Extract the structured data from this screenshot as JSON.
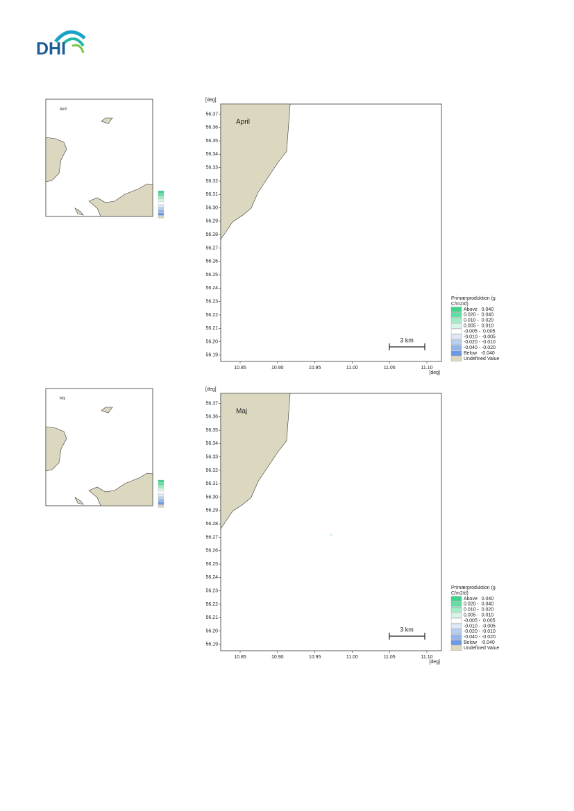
{
  "header": {
    "logo": "DHI"
  },
  "panels": [
    {
      "label": "April",
      "y_unit": "[deg]",
      "x_unit": "[deg]",
      "yticks": [
        "56.37",
        "56.36",
        "56.35",
        "56.34",
        "56.33",
        "56.32",
        "56.31",
        "56.30",
        "56.29",
        "56.28",
        "56.27",
        "56.26",
        "56.25",
        "56.24",
        "56.23",
        "56.22",
        "56.21",
        "56.20",
        "56.19"
      ],
      "xticks": [
        "10.85",
        "10.90",
        "10.95",
        "11.00",
        "11.05",
        "11.10"
      ],
      "scale_bar": "3 km",
      "legend": {
        "title": "Primærproduktion (g C/m2/d)",
        "items": [
          {
            "label": "Above   0.040",
            "color": "#3fd48c"
          },
          {
            "label": "0.020 -  0.040",
            "color": "#62dea2"
          },
          {
            "label": "0.010 -  0.020",
            "color": "#a2ecc8"
          },
          {
            "label": "0.005 -  0.010",
            "color": "#d8f6e8"
          },
          {
            "label": "-0.005 -  0.005",
            "color": "#ffffff"
          },
          {
            "label": "-0.010 - -0.005",
            "color": "#dde8f8"
          },
          {
            "label": "-0.020 - -0.010",
            "color": "#b8d0f0"
          },
          {
            "label": "-0.040 - -0.020",
            "color": "#92b6ec"
          },
          {
            "label": "Below   -0.040",
            "color": "#6a9ae4"
          },
          {
            "label": "Undefined Value",
            "color": "#dcd8c0"
          }
        ]
      }
    },
    {
      "label": "Maj",
      "y_unit": "[deg]",
      "x_unit": "[deg]",
      "yticks": [
        "56.37",
        "56.36",
        "56.35",
        "56.34",
        "56.33",
        "56.32",
        "56.31",
        "56.30",
        "56.29",
        "56.28",
        "56.27",
        "56.26",
        "56.25",
        "56.24",
        "56.23",
        "56.22",
        "56.21",
        "56.20",
        "56.19"
      ],
      "xticks": [
        "10.85",
        "10.90",
        "10.95",
        "11.00",
        "11.05",
        "11.10"
      ],
      "scale_bar": "3 km",
      "legend": {
        "title": "Primærproduktion (g C/m2/d)",
        "items": [
          {
            "label": "Above   0.040",
            "color": "#3fd48c"
          },
          {
            "label": "0.020 -  0.040",
            "color": "#62dea2"
          },
          {
            "label": "0.010 -  0.020",
            "color": "#a2ecc8"
          },
          {
            "label": "0.005 -  0.010",
            "color": "#d8f6e8"
          },
          {
            "label": "-0.005 -  0.005",
            "color": "#ffffff"
          },
          {
            "label": "-0.010 - -0.005",
            "color": "#dde8f8"
          },
          {
            "label": "-0.020 - -0.010",
            "color": "#b8d0f0"
          },
          {
            "label": "-0.040 - -0.020",
            "color": "#92b6ec"
          },
          {
            "label": "Below   -0.040",
            "color": "#6a9ae4"
          },
          {
            "label": "Undefined Value",
            "color": "#dcd8c0"
          }
        ]
      }
    }
  ]
}
